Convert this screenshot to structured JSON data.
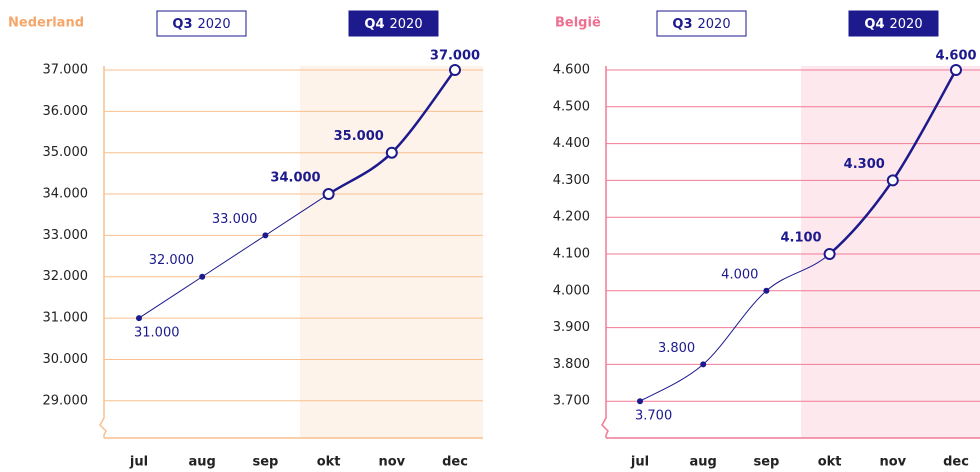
{
  "chart_data": [
    {
      "type": "line",
      "title": "Nederland",
      "title_color": "#f5a66b",
      "grid_color": "#f8c08e",
      "shade_color": "#fdf3ea",
      "periods": [
        {
          "quarter": "Q3",
          "year": "2020"
        },
        {
          "quarter": "Q4",
          "year": "2020"
        }
      ],
      "categories": [
        "jul",
        "aug",
        "sep",
        "okt",
        "nov",
        "dec"
      ],
      "values": [
        31000,
        32000,
        33000,
        34000,
        35000,
        37000
      ],
      "value_labels": [
        "31.000",
        "32.000",
        "33.000",
        "34.000",
        "35.000",
        "37.000"
      ],
      "color": "#1c1a8c",
      "ylim": [
        28100,
        37000
      ],
      "yticks": [
        {
          "value": 29000,
          "label": "29.000"
        },
        {
          "value": 30000,
          "label": "30.000"
        },
        {
          "value": 31000,
          "label": "31.000"
        },
        {
          "value": 32000,
          "label": "32.000"
        },
        {
          "value": 33000,
          "label": "33.000"
        },
        {
          "value": 34000,
          "label": "34.000"
        },
        {
          "value": 35000,
          "label": "35.000"
        },
        {
          "value": 36000,
          "label": "36.000"
        },
        {
          "value": 37000,
          "label": "37.000"
        }
      ],
      "grid": true
    },
    {
      "type": "line",
      "title": "België",
      "title_color": "#ee6f8f",
      "grid_color": "#f07a96",
      "shade_color": "#fde8ee",
      "periods": [
        {
          "quarter": "Q3",
          "year": "2020"
        },
        {
          "quarter": "Q4",
          "year": "2020"
        }
      ],
      "categories": [
        "jul",
        "aug",
        "sep",
        "okt",
        "nov",
        "dec"
      ],
      "values": [
        3700,
        3800,
        4000,
        4100,
        4300,
        4600
      ],
      "value_labels": [
        "3.700",
        "3.800",
        "4.000",
        "4.100",
        "4.300",
        "4.600"
      ],
      "color": "#1c1a8c",
      "ylim": [
        3600,
        4600
      ],
      "yticks": [
        {
          "value": 3700,
          "label": "3.700"
        },
        {
          "value": 3800,
          "label": "3.800"
        },
        {
          "value": 3900,
          "label": "3.900"
        },
        {
          "value": 4000,
          "label": "4.000"
        },
        {
          "value": 4100,
          "label": "4.100"
        },
        {
          "value": 4200,
          "label": "4.200"
        },
        {
          "value": 4300,
          "label": "4.300"
        },
        {
          "value": 4400,
          "label": "4.400"
        },
        {
          "value": 4500,
          "label": "4.500"
        },
        {
          "value": 4600,
          "label": "4.600"
        }
      ],
      "grid": true
    }
  ]
}
